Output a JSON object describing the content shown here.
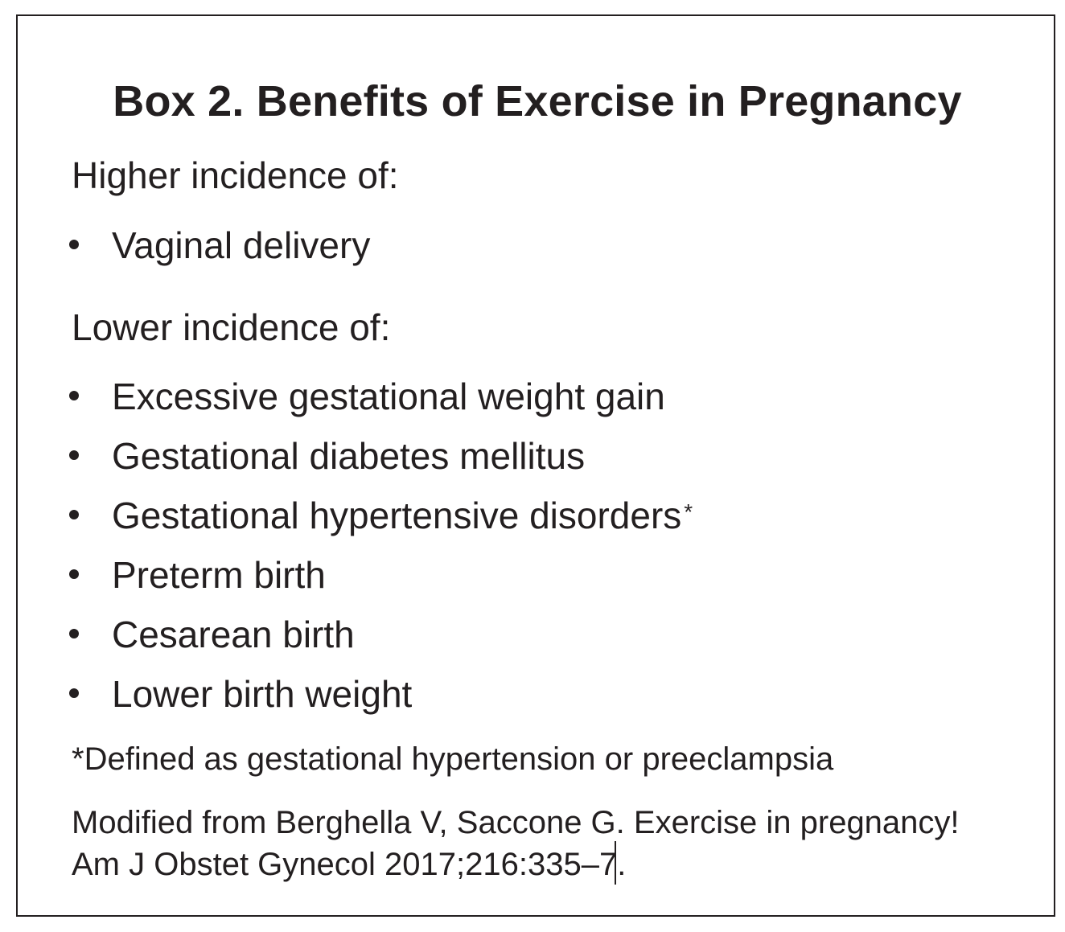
{
  "box": {
    "title": "Box 2. Benefits of Exercise in Pregnancy",
    "higher_heading": "Higher incidence of:",
    "higher_items": [
      {
        "text": "Vaginal delivery"
      }
    ],
    "lower_heading": "Lower incidence of:",
    "lower_items": [
      {
        "text": "Excessive gestational weight gain"
      },
      {
        "text": "Gestational diabetes mellitus"
      },
      {
        "text": "Gestational hypertensive disorders",
        "marker": "*"
      },
      {
        "text": "Preterm birth"
      },
      {
        "text": "Cesarean birth"
      },
      {
        "text": "Lower birth weight"
      }
    ],
    "footnote": "*Defined as gestational hypertension or preeclampsia",
    "source_line1": "Modified from Berghella V, Saccone G. Exercise in pregnancy!",
    "source_line2": "Am J Obstet Gynecol 2017;216:335–7."
  }
}
